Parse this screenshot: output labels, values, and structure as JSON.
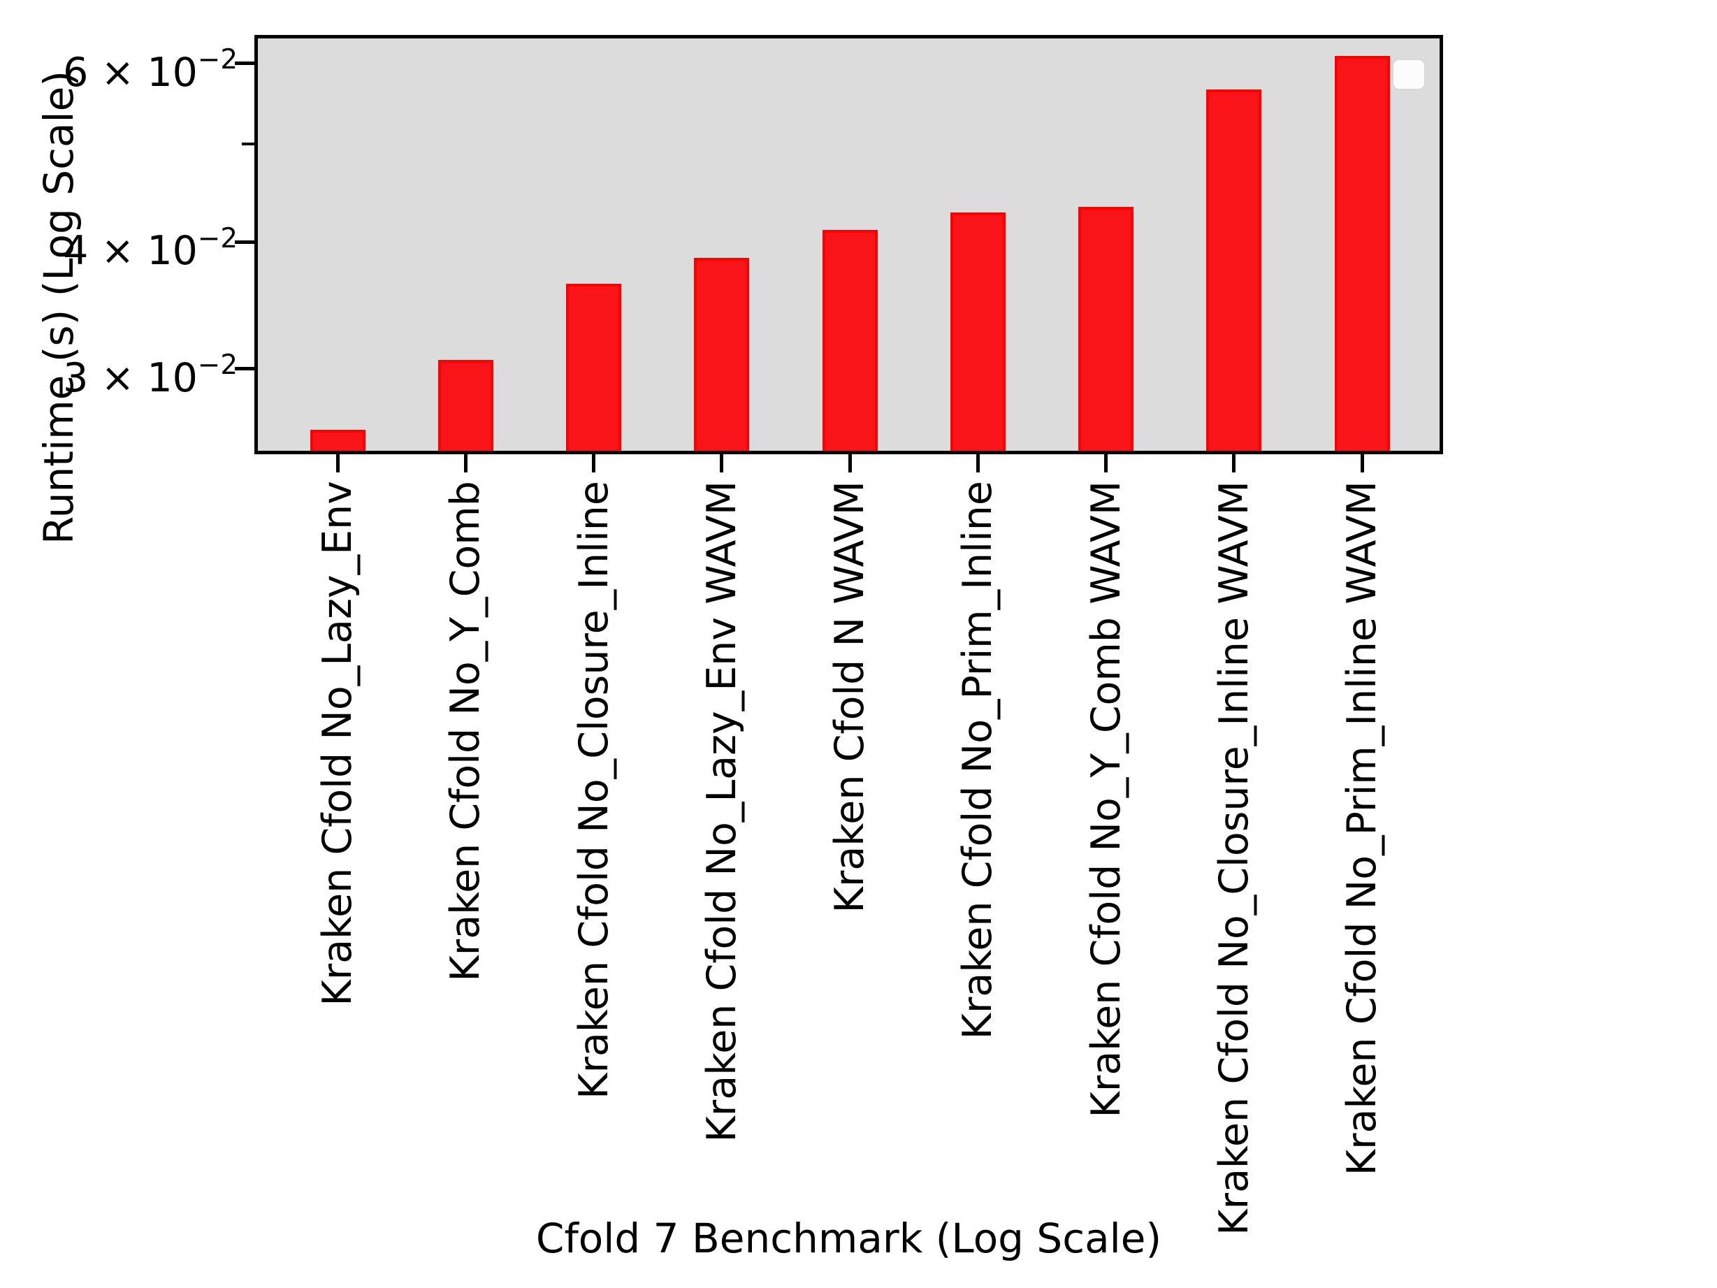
{
  "chart_data": {
    "type": "bar",
    "title": "",
    "xlabel": "Cfold 7 Benchmark (Log Scale)",
    "ylabel": "Runtime (s) (Log Scale)",
    "categories": [
      "Kraken Cfold No_Lazy_Env",
      "Kraken Cfold No_Y_Comb",
      "Kraken Cfold No_Closure_Inline",
      "Kraken Cfold No_Lazy_Env WAVM",
      "Kraken Cfold N WAVM",
      "Kraken Cfold No_Prim_Inline",
      "Kraken Cfold No_Y_Comb WAVM",
      "Kraken Cfold No_Closure_Inline WAVM",
      "Kraken Cfold No_Prim_Inline WAVM"
    ],
    "values": [
      0.0261,
      0.0306,
      0.0364,
      0.0386,
      0.0411,
      0.0428,
      0.0433,
      0.0566,
      0.061
    ],
    "yscale": "log",
    "ylim": [
      0.0249,
      0.0635
    ],
    "yticks": [
      {
        "value": 0.06,
        "mantissa": "6",
        "base": "10",
        "exponent": "−2"
      },
      {
        "value": 0.04,
        "mantissa": "4",
        "base": "10",
        "exponent": "−2"
      },
      {
        "value": 0.03,
        "mantissa": "3",
        "base": "10",
        "exponent": "−2"
      }
    ],
    "minor_yticks": [
      0.05
    ],
    "grid": false,
    "legend": {
      "visible": true,
      "position": "upper right",
      "entries": []
    },
    "colors": {
      "bar_fill": "#f81418",
      "bar_edge": "#ff0000",
      "plot_background": "#dcdcdc",
      "figure_background": "#ffffff",
      "spine": "#000000"
    }
  }
}
